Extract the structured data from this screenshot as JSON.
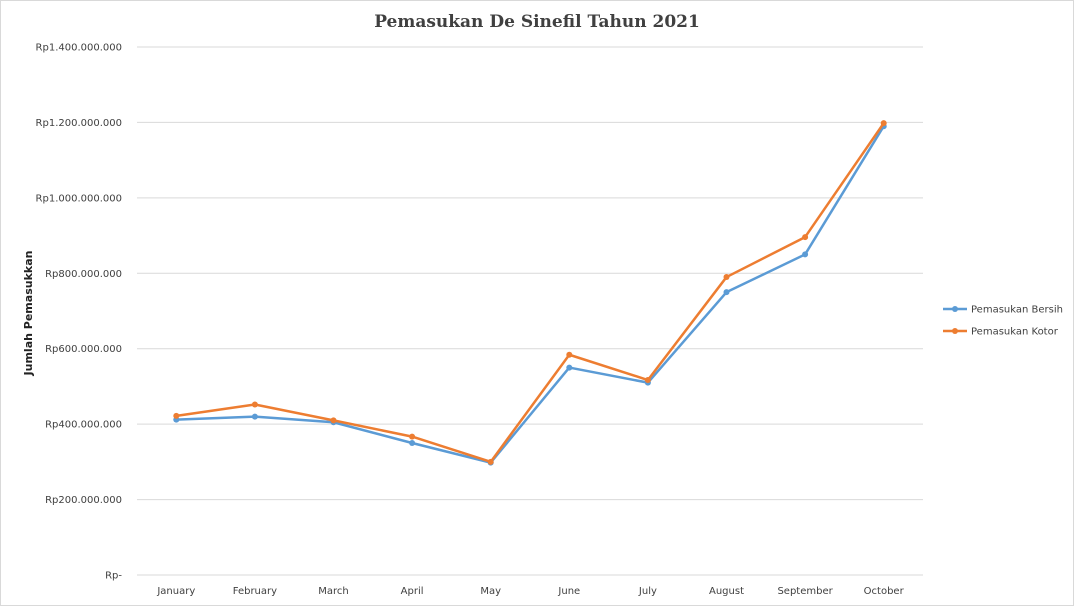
{
  "chart_data": {
    "type": "line",
    "title": "Pemasukan De Sinefil Tahun 2021",
    "xlabel": "",
    "ylabel": "Jumlah Pemasukkan",
    "categories": [
      "January",
      "February",
      "March",
      "April",
      "May",
      "June",
      "July",
      "August",
      "September",
      "October"
    ],
    "series": [
      {
        "name": "Pemasukan Bersih",
        "color": "#5B9BD5",
        "values": [
          412000000,
          420000000,
          405000000,
          350000000,
          298000000,
          550000000,
          510000000,
          750000000,
          850000000,
          1190000000
        ]
      },
      {
        "name": "Pemasukan Kotor",
        "color": "#ED7D31",
        "values": [
          422000000,
          452000000,
          410000000,
          367000000,
          300000000,
          584000000,
          517000000,
          790000000,
          896000000,
          1198000000
        ]
      }
    ],
    "ylim": [
      0,
      1400000000
    ],
    "yticks": [
      {
        "value": 0,
        "label": "Rp-"
      },
      {
        "value": 200000000,
        "label": "Rp200.000.000"
      },
      {
        "value": 400000000,
        "label": "Rp400.000.000"
      },
      {
        "value": 600000000,
        "label": "Rp600.000.000"
      },
      {
        "value": 800000000,
        "label": "Rp800.000.000"
      },
      {
        "value": 1000000000,
        "label": "Rp1.000.000.000"
      },
      {
        "value": 1200000000,
        "label": "Rp1.200.000.000"
      },
      {
        "value": 1400000000,
        "label": "Rp1.400.000.000"
      }
    ],
    "grid": true,
    "legend_position": "right",
    "gridline_color": "#d9d9d9"
  }
}
